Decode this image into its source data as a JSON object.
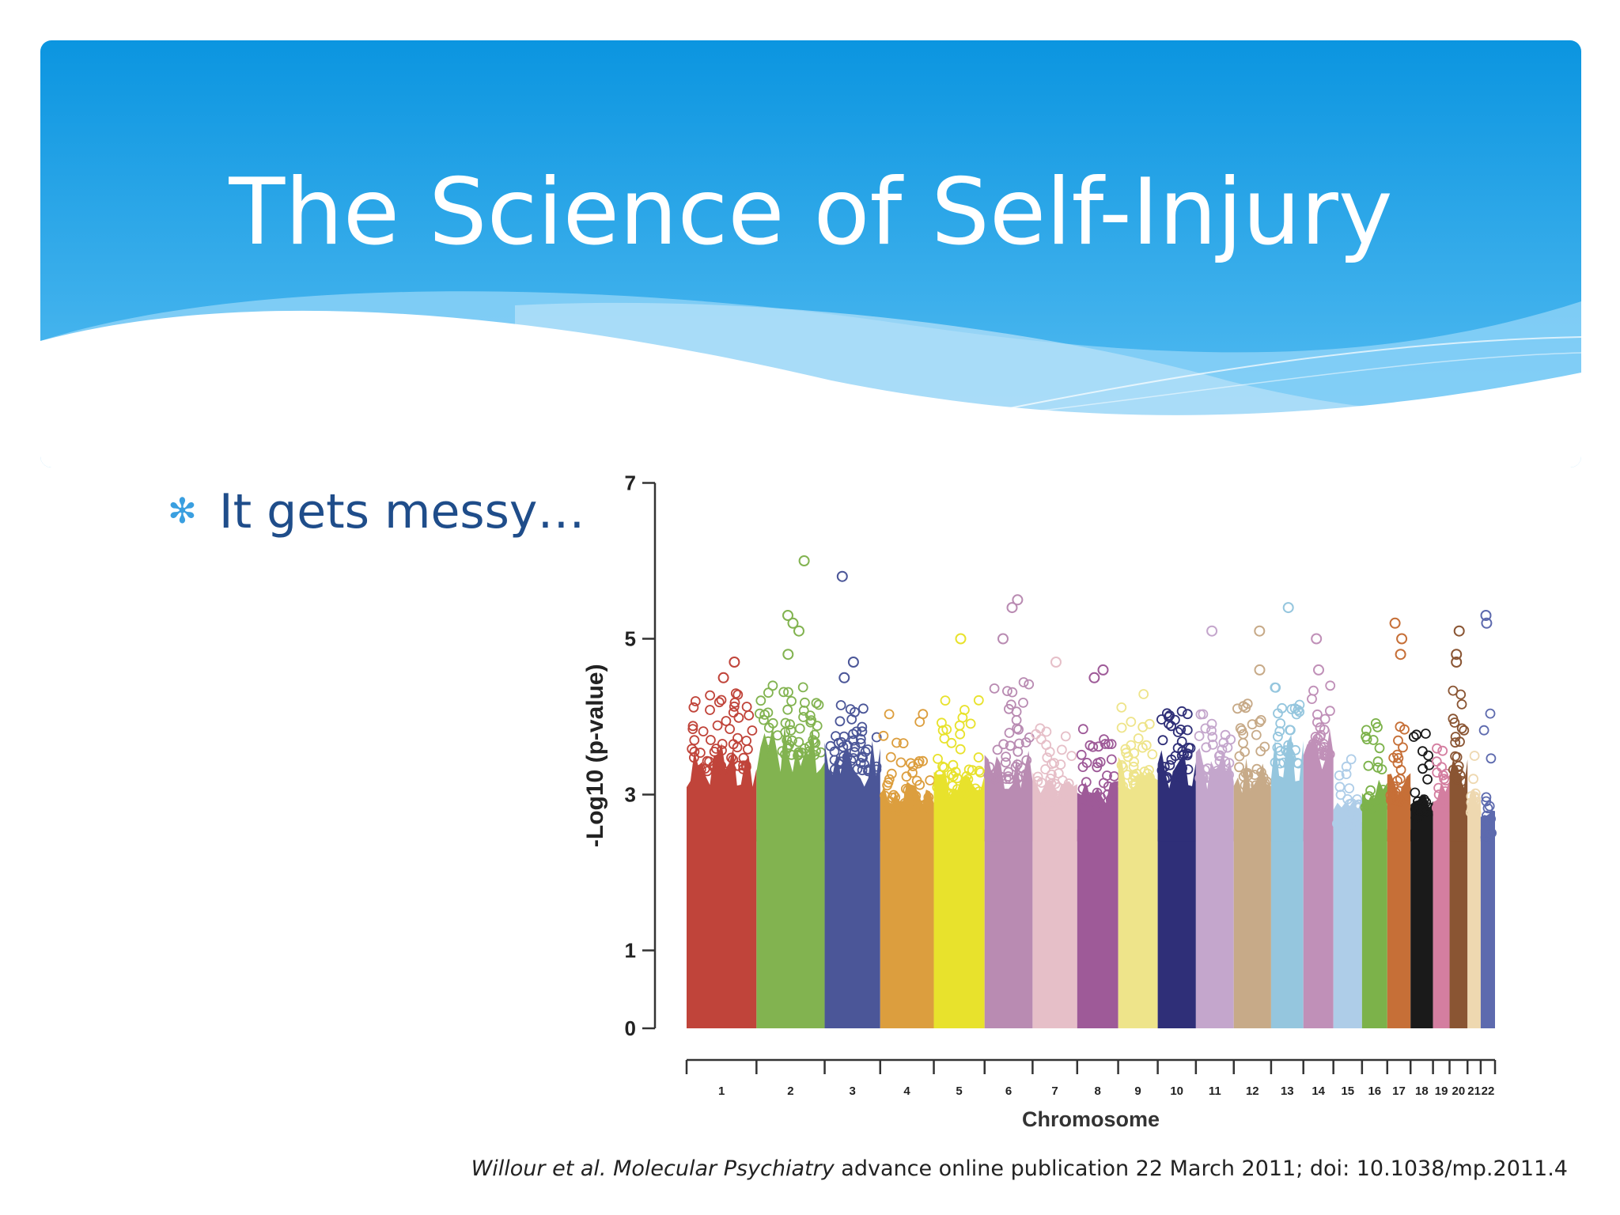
{
  "title": "The Science of Self-Injury",
  "bullet": {
    "icon": "asterisk-icon",
    "text": "It gets messy…"
  },
  "citation": {
    "authors": "Willour et al.",
    "journal": "Molecular Psychiatry",
    "rest": " advance online publication 22 March 2011; doi: 10.1038/mp.2011.4"
  },
  "colors": {
    "header_top": "#0b95e0",
    "header_bottom": "#5cc0f3",
    "title": "#ffffff",
    "bullet_text": "#1f4d8a",
    "bullet_icon": "#3a9fe0"
  },
  "chart_data": {
    "type": "scatter",
    "subtype": "manhattan",
    "title": "",
    "xlabel": "Chromosome",
    "ylabel": "-Log10 (p-value)",
    "ylim": [
      0,
      7
    ],
    "yticks": [
      0,
      1,
      3,
      5,
      7
    ],
    "grid": false,
    "legend": "none",
    "categories": [
      "1",
      "2",
      "3",
      "4",
      "5",
      "6",
      "7",
      "8",
      "9",
      "10",
      "11",
      "12",
      "13",
      "14",
      "15",
      "16",
      "17",
      "18",
      "19",
      "20",
      "21",
      "22"
    ],
    "relative_length": [
      249,
      243,
      198,
      191,
      181,
      171,
      159,
      146,
      141,
      136,
      135,
      133,
      115,
      107,
      102,
      90,
      83,
      80,
      59,
      64,
      47,
      51
    ],
    "colors": [
      "#c0443a",
      "#82b350",
      "#4b5698",
      "#dc9e3e",
      "#e8e22c",
      "#b98bb2",
      "#e6bfc8",
      "#9e5a98",
      "#eee48a",
      "#2f2f78",
      "#c4a6cc",
      "#c7aa88",
      "#95c6de",
      "#c090b8",
      "#aecde8",
      "#7cb24a",
      "#c66f37",
      "#1a1a1a",
      "#d47ea0",
      "#8a5533",
      "#eed8b0",
      "#5d6aae"
    ],
    "dense_top": [
      3.7,
      3.9,
      3.7,
      3.2,
      3.4,
      3.6,
      3.3,
      3.2,
      3.5,
      3.6,
      3.6,
      3.5,
      3.8,
      3.9,
      3.0,
      3.2,
      3.3,
      3.1,
      3.2,
      3.5,
      3.1,
      2.8
    ],
    "scatter_top": [
      4.3,
      4.4,
      4.2,
      4.1,
      4.3,
      4.5,
      3.9,
      3.9,
      4.3,
      4.1,
      4.1,
      4.3,
      4.4,
      4.4,
      3.5,
      4.0,
      3.9,
      3.8,
      3.6,
      4.4,
      3.6,
      4.1
    ],
    "peaks": [
      {
        "chr": "1",
        "y": 4.7
      },
      {
        "chr": "1",
        "y": 4.5
      },
      {
        "chr": "2",
        "y": 6.0
      },
      {
        "chr": "2",
        "y": 5.3
      },
      {
        "chr": "2",
        "y": 5.2
      },
      {
        "chr": "2",
        "y": 5.1
      },
      {
        "chr": "2",
        "y": 4.8
      },
      {
        "chr": "3",
        "y": 5.8
      },
      {
        "chr": "3",
        "y": 4.7
      },
      {
        "chr": "3",
        "y": 4.5
      },
      {
        "chr": "5",
        "y": 5.0
      },
      {
        "chr": "6",
        "y": 5.5
      },
      {
        "chr": "6",
        "y": 5.4
      },
      {
        "chr": "6",
        "y": 5.0
      },
      {
        "chr": "7",
        "y": 4.7
      },
      {
        "chr": "8",
        "y": 4.6
      },
      {
        "chr": "8",
        "y": 4.5
      },
      {
        "chr": "11",
        "y": 5.1
      },
      {
        "chr": "12",
        "y": 5.1
      },
      {
        "chr": "12",
        "y": 4.6
      },
      {
        "chr": "13",
        "y": 5.4
      },
      {
        "chr": "14",
        "y": 5.0
      },
      {
        "chr": "14",
        "y": 4.6
      },
      {
        "chr": "17",
        "y": 5.2
      },
      {
        "chr": "17",
        "y": 5.0
      },
      {
        "chr": "17",
        "y": 4.8
      },
      {
        "chr": "20",
        "y": 5.1
      },
      {
        "chr": "20",
        "y": 4.8
      },
      {
        "chr": "20",
        "y": 4.7
      },
      {
        "chr": "22",
        "y": 5.3
      },
      {
        "chr": "22",
        "y": 5.2
      }
    ]
  }
}
